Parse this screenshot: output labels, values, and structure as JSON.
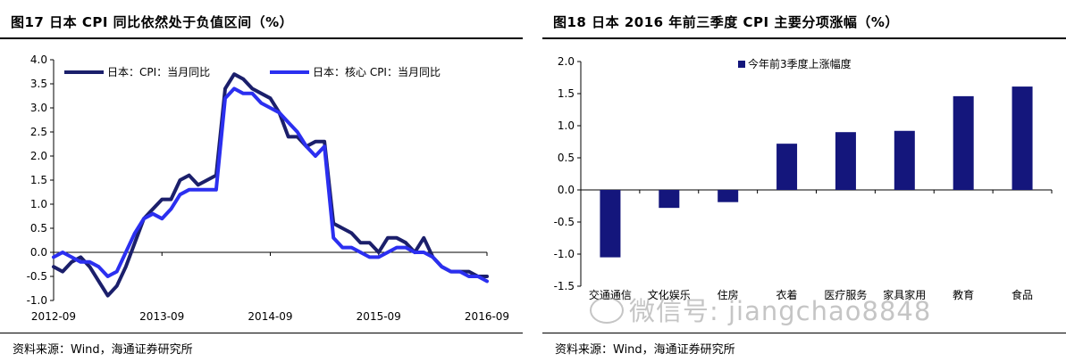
{
  "left": {
    "title": "图17 日本 CPI 同比依然处于负值区间（%）",
    "source": "资料来源：Wind，海通证券研究所"
  },
  "right": {
    "title": "图18 日本 2016 年前三季度 CPI 主要分项涨幅（%）",
    "source": "资料来源：Wind，海通证券研究所"
  },
  "watermark": "微信号: jiangchao8848",
  "colors": {
    "cpi": "#1b1f6b",
    "core": "#2b2ff0",
    "bar": "#14167c"
  },
  "chart_data": [
    {
      "type": "line",
      "title": "",
      "ylim": [
        -1.0,
        4.0
      ],
      "yticks": [
        "4.0",
        "3.5",
        "3.0",
        "2.5",
        "2.0",
        "1.5",
        "1.0",
        "0.5",
        "0.0",
        "-0.5",
        "-1.0"
      ],
      "xticks": [
        "2012-09",
        "2013-09",
        "2014-09",
        "2015-09",
        "2016-09"
      ],
      "grid": false,
      "legend": "top",
      "x": [
        "2012-09",
        "2012-10",
        "2012-11",
        "2012-12",
        "2013-01",
        "2013-02",
        "2013-03",
        "2013-04",
        "2013-05",
        "2013-06",
        "2013-07",
        "2013-08",
        "2013-09",
        "2013-10",
        "2013-11",
        "2013-12",
        "2014-01",
        "2014-02",
        "2014-03",
        "2014-04",
        "2014-05",
        "2014-06",
        "2014-07",
        "2014-08",
        "2014-09",
        "2014-10",
        "2014-11",
        "2014-12",
        "2015-01",
        "2015-02",
        "2015-03",
        "2015-04",
        "2015-05",
        "2015-06",
        "2015-07",
        "2015-08",
        "2015-09",
        "2015-10",
        "2015-11",
        "2015-12",
        "2016-01",
        "2016-02",
        "2016-03",
        "2016-04",
        "2016-05",
        "2016-06",
        "2016-07",
        "2016-08",
        "2016-09"
      ],
      "series": [
        {
          "name": "日本：CPI：当月同比",
          "color": "#1b1f6b",
          "values": [
            -0.3,
            -0.4,
            -0.2,
            -0.1,
            -0.3,
            -0.6,
            -0.9,
            -0.7,
            -0.3,
            0.2,
            0.7,
            0.9,
            1.1,
            1.1,
            1.5,
            1.6,
            1.4,
            1.5,
            1.6,
            3.4,
            3.7,
            3.6,
            3.4,
            3.3,
            3.2,
            2.9,
            2.4,
            2.4,
            2.2,
            2.3,
            2.3,
            0.6,
            0.5,
            0.4,
            0.2,
            0.2,
            0.0,
            0.3,
            0.3,
            0.2,
            0.0,
            0.3,
            -0.1,
            -0.3,
            -0.4,
            -0.4,
            -0.4,
            -0.5,
            -0.5
          ]
        },
        {
          "name": "日本：核心 CPI：当月同比",
          "color": "#2b2ff0",
          "values": [
            -0.1,
            0.0,
            -0.1,
            -0.2,
            -0.2,
            -0.3,
            -0.5,
            -0.4,
            0.0,
            0.4,
            0.7,
            0.8,
            0.7,
            0.9,
            1.2,
            1.3,
            1.3,
            1.3,
            1.3,
            3.2,
            3.4,
            3.3,
            3.3,
            3.1,
            3.0,
            2.9,
            2.7,
            2.5,
            2.2,
            2.0,
            2.2,
            0.3,
            0.1,
            0.1,
            0.0,
            -0.1,
            -0.1,
            0.0,
            0.1,
            0.1,
            0.0,
            0.0,
            -0.1,
            -0.3,
            -0.4,
            -0.4,
            -0.5,
            -0.5,
            -0.6
          ]
        }
      ]
    },
    {
      "type": "bar",
      "title": "",
      "ylim": [
        -1.5,
        2.0
      ],
      "yticks": [
        "2.0",
        "1.5",
        "1.0",
        "0.5",
        "0.0",
        "-0.5",
        "-1.0",
        "-1.5"
      ],
      "grid": false,
      "legend": "top",
      "categories": [
        "交通通信",
        "文化娱乐",
        "住房",
        "衣着",
        "医疗服务",
        "家具家用",
        "教育",
        "食品"
      ],
      "category_labels": [
        "交通通信",
        "文化娱乐",
        "住房",
        "衣着",
        "医疗服务",
        "家具家用",
        "教育",
        "食品"
      ],
      "series": [
        {
          "name": "今年前3季度上涨幅度",
          "color": "#14167c",
          "values": [
            -1.05,
            -0.28,
            -0.19,
            0.72,
            0.9,
            0.92,
            1.46,
            1.61
          ]
        }
      ]
    }
  ]
}
